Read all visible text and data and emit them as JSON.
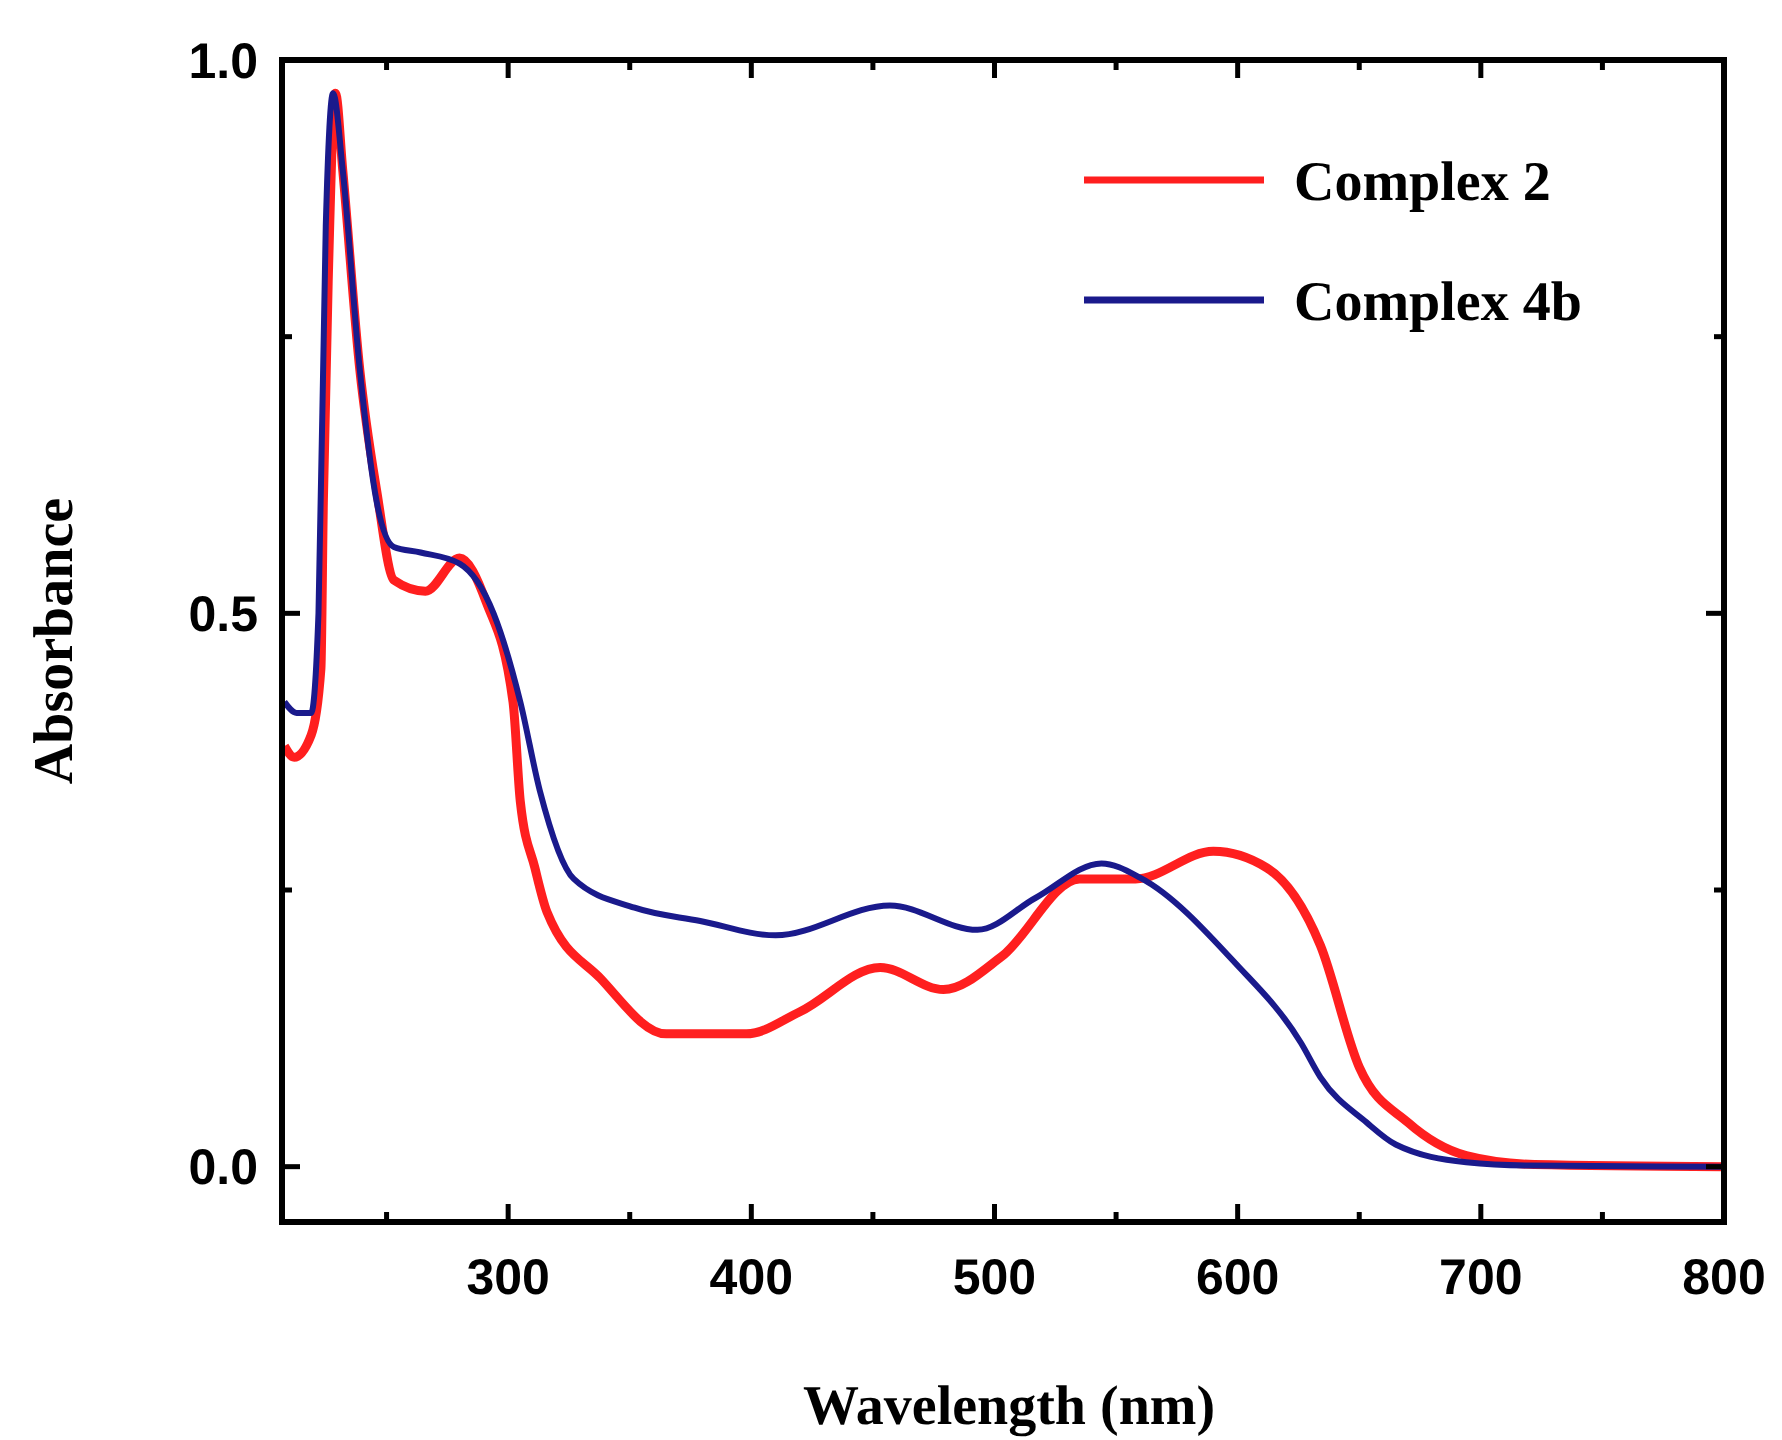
{
  "chart_data": {
    "type": "line",
    "xlabel": "Wavelength (nm)",
    "ylabel": "Absorbance",
    "xlim": [
      207,
      800
    ],
    "ylim": [
      -0.05,
      1.0
    ],
    "xticks": [
      {
        "value": 250,
        "label": null
      },
      300,
      {
        "value": 350,
        "label": null
      },
      400,
      {
        "value": 450,
        "label": null
      },
      500,
      {
        "value": 550,
        "label": null
      },
      600,
      {
        "value": 650,
        "label": null
      },
      700,
      {
        "value": 750,
        "label": null
      },
      800
    ],
    "yticks": [
      {
        "value": 0,
        "label": "0.0"
      },
      {
        "value": 0.25,
        "label": null
      },
      0.5,
      {
        "value": 0.75,
        "label": null
      },
      {
        "value": 1,
        "label": "1.0"
      }
    ],
    "grid": false,
    "legend": "top right",
    "marker": "none",
    "line_style": "solid",
    "series": [
      {
        "name": "Complex 2",
        "color": "#ff1f1f",
        "x": [
          208,
          212,
          219,
          223,
          224,
          226,
          229,
          232,
          239,
          246,
          253,
          266,
          280,
          291,
          302,
          305,
          311,
          316,
          338,
          365,
          398,
          420,
          453,
          479,
          503,
          535,
          558,
          590,
          612,
          634,
          650,
          670,
          694,
          722,
          800
        ],
        "values": [
          0.38,
          0.37,
          0.39,
          0.45,
          0.6,
          0.8,
          0.97,
          0.9,
          0.72,
          0.61,
          0.53,
          0.52,
          0.55,
          0.51,
          0.42,
          0.33,
          0.27,
          0.23,
          0.17,
          0.12,
          0.12,
          0.14,
          0.18,
          0.16,
          0.19,
          0.26,
          0.26,
          0.285,
          0.27,
          0.2,
          0.09,
          0.04,
          0.01,
          0.002,
          0
        ]
      },
      {
        "name": "Complex 4b",
        "color": "#1a1a8c",
        "x": [
          208,
          213,
          219,
          222,
          225,
          228,
          232,
          239,
          246,
          253,
          264,
          280,
          294,
          305,
          313,
          327,
          352,
          379,
          410,
          457,
          493,
          517,
          544,
          560,
          599,
          626,
          634,
          653,
          665,
          694,
          720,
          800
        ],
        "values": [
          0.42,
          0.41,
          0.41,
          0.5,
          0.85,
          0.97,
          0.9,
          0.72,
          0.6,
          0.56,
          0.555,
          0.545,
          0.5,
          0.42,
          0.34,
          0.26,
          0.234,
          0.222,
          0.209,
          0.236,
          0.214,
          0.243,
          0.274,
          0.261,
          0.184,
          0.112,
          0.081,
          0.04,
          0.02,
          0.004,
          0.001,
          0
        ]
      }
    ]
  }
}
